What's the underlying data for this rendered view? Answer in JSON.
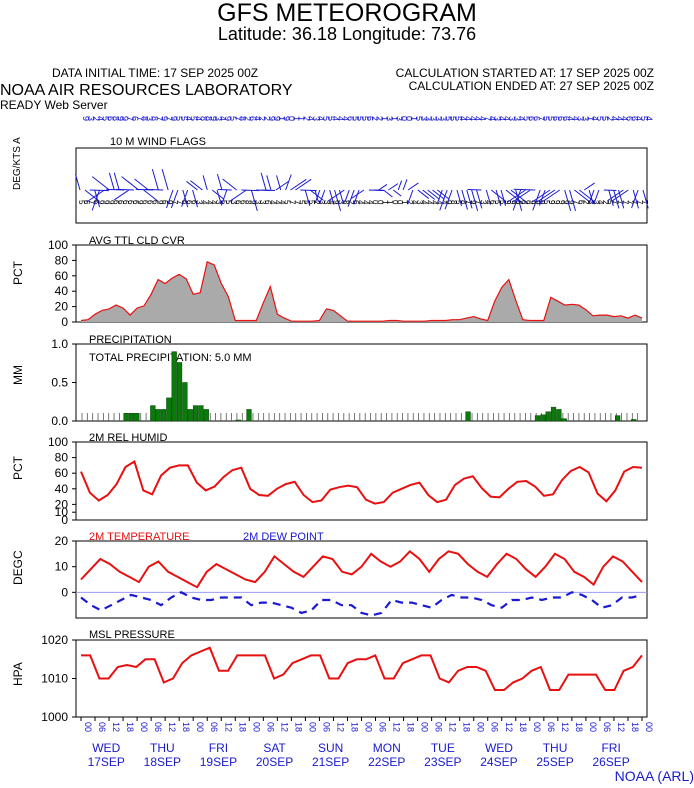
{
  "header": {
    "title": "GFS METEOROGRAM",
    "latlon": "Latitude: 36.18 Longitude:  73.76",
    "data_initial_time": "DATA INITIAL TIME: 17 SEP 2025 00Z",
    "calc_started": "CALCULATION STARTED AT: 17 SEP 2025 00Z",
    "calc_ended": "CALCULATION ENDED AT: 27 SEP 2025 00Z",
    "lab": "NOAA AIR RESOURCES LABORATORY",
    "server": "READY Web Server"
  },
  "footer": {
    "credit": "NOAA (ARL)"
  },
  "colors": {
    "red": "#e81010",
    "blue": "#1a1ad0",
    "green": "#0a7a0a",
    "gray": "#aaaaaa",
    "zero_line": "#9c9cf0"
  },
  "chart_data": [
    {
      "type": "line",
      "title": "10 M  WIND FLAGS",
      "ylabel": "DEG/KTS  A",
      "series": [
        {
          "name": "direction",
          "values": [
            9,
            3,
            2,
            4,
            5,
            6,
            8,
            9,
            9,
            7,
            6,
            7,
            8,
            3,
            8,
            7,
            9,
            7,
            9,
            5,
            5,
            4,
            5,
            4,
            8,
            8,
            9,
            3,
            4,
            9,
            5,
            7,
            8,
            2,
            6,
            4,
            2,
            2,
            9,
            9,
            1,
            9,
            0,
            1,
            1,
            2,
            4,
            3,
            4,
            5,
            5,
            4,
            4,
            4,
            6,
            5,
            5,
            5,
            6,
            2,
            2,
            1,
            3,
            1,
            3,
            0,
            0,
            1,
            5,
            3,
            3,
            3,
            3,
            3,
            5,
            5,
            5,
            4,
            4,
            4,
            4,
            4,
            7,
            4,
            3,
            4,
            4,
            3,
            3,
            4,
            5,
            6,
            6,
            7,
            5,
            5,
            6,
            6,
            6,
            4,
            4,
            3,
            3,
            1,
            4,
            5,
            5,
            2,
            4,
            4,
            4,
            6,
            6,
            4,
            5,
            4
          ]
        },
        {
          "name": "speed",
          "values": [
            5,
            6,
            7,
            6,
            9,
            9,
            9,
            6,
            6,
            6,
            6,
            6,
            9,
            6,
            6,
            6,
            9,
            6,
            9,
            7,
            7,
            6,
            6,
            6,
            3,
            4,
            4,
            4,
            3,
            5,
            5,
            3,
            6,
            6,
            8,
            9,
            3,
            3,
            6,
            4,
            4,
            4,
            5,
            7,
            7,
            5,
            5,
            5,
            2,
            3,
            3,
            4,
            9,
            3,
            8,
            2,
            6,
            4,
            4,
            4,
            0,
            0,
            1,
            1,
            0,
            0,
            1,
            2,
            4,
            3,
            4,
            4,
            4,
            4,
            4,
            9,
            8,
            5,
            8,
            7,
            9,
            7,
            3,
            4,
            6,
            5,
            5,
            9,
            9,
            9,
            9,
            9,
            9,
            9,
            9,
            5,
            9,
            9,
            9,
            9,
            9,
            7,
            6,
            2,
            3,
            3,
            4,
            2,
            5,
            7,
            7,
            7,
            7,
            7,
            7,
            7
          ]
        }
      ]
    },
    {
      "type": "area",
      "title": "AVG TTL CLD CVR",
      "ylabel": "PCT",
      "ylim": [
        0,
        100
      ],
      "yticks": [
        "100",
        "80",
        "60",
        "40",
        "20",
        "0"
      ],
      "series": [
        {
          "values": [
            2,
            3,
            10,
            15,
            17,
            22,
            18,
            9,
            18,
            21,
            36,
            55,
            50,
            57,
            62,
            56,
            36,
            38,
            78,
            74,
            50,
            33,
            2,
            2,
            2,
            2,
            25,
            46,
            10,
            5,
            1,
            1,
            1,
            1,
            2,
            17,
            15,
            8,
            1,
            1,
            1,
            1,
            1,
            1,
            2,
            2,
            1,
            1,
            1,
            1,
            2,
            2,
            2,
            3,
            3,
            5,
            7,
            4,
            2,
            27,
            45,
            55,
            28,
            3,
            2,
            2,
            2,
            32,
            27,
            22,
            23,
            22,
            16,
            8,
            9,
            9,
            7,
            8,
            5,
            9,
            5
          ]
        }
      ]
    },
    {
      "type": "bar",
      "title": "PRECIPITATION",
      "ylabel": "MM",
      "ylim": [
        0,
        1.0
      ],
      "yticks": [
        "1.0",
        "0.5",
        "0.0"
      ],
      "annotation": "TOTAL PRECIPITATION:   5.0 MM",
      "values": [
        0,
        0,
        0,
        0,
        0,
        0,
        0,
        0,
        0.1,
        0.1,
        0.1,
        0,
        0,
        0.2,
        0.15,
        0.15,
        0.3,
        0.9,
        0.76,
        0.5,
        0.15,
        0.2,
        0.2,
        0.15,
        0,
        0,
        0,
        0,
        0,
        0.01,
        0,
        0.15,
        0,
        0,
        0,
        0,
        0,
        0,
        0,
        0,
        0,
        0,
        0,
        0,
        0,
        0,
        0,
        0,
        0,
        0,
        0,
        0,
        0,
        0,
        0,
        0,
        0,
        0,
        0,
        0,
        0,
        0,
        0,
        0,
        0,
        0,
        0,
        0,
        0,
        0,
        0,
        0,
        0.12,
        0,
        0,
        0,
        0,
        0,
        0,
        0,
        0,
        0,
        0,
        0,
        0,
        0.07,
        0.08,
        0.12,
        0.18,
        0.15,
        0.03,
        0,
        0,
        0,
        0,
        0,
        0,
        0,
        0,
        0,
        0.07,
        0,
        0,
        0.02,
        0
      ]
    },
    {
      "type": "line",
      "title": "2M REL HUMID",
      "ylabel": "PCT",
      "ylim": [
        0,
        100
      ],
      "yticks": [
        "100",
        "80",
        "60",
        "40",
        "20",
        "10",
        "0"
      ],
      "series": [
        {
          "values": [
            62,
            35,
            25,
            32,
            46,
            68,
            75,
            38,
            33,
            57,
            67,
            70,
            70,
            48,
            38,
            43,
            55,
            64,
            67,
            40,
            32,
            31,
            40,
            46,
            49,
            32,
            23,
            25,
            39,
            42,
            44,
            42,
            26,
            21,
            23,
            35,
            40,
            45,
            48,
            32,
            23,
            26,
            45,
            53,
            56,
            41,
            30,
            29,
            40,
            49,
            50,
            43,
            31,
            33,
            51,
            63,
            68,
            61,
            34,
            24,
            38,
            62,
            68,
            67
          ]
        }
      ]
    },
    {
      "type": "line",
      "title": "2M TEMPERATURE",
      "ylabel": "DEGC",
      "ylim": [
        -10,
        20
      ],
      "yticks": [
        "20",
        "10",
        "0"
      ],
      "series": [
        {
          "name": "2M TEMPERATURE",
          "values": [
            5,
            9,
            13,
            11,
            8,
            6,
            4,
            10,
            12,
            8,
            6,
            4,
            2,
            8,
            11,
            9,
            7,
            5,
            4,
            8,
            14,
            11,
            8,
            6,
            10,
            14,
            13,
            8,
            7,
            10,
            15,
            12,
            10,
            12,
            16,
            13,
            8,
            13,
            16,
            15,
            11,
            8,
            6,
            11,
            15,
            13,
            9,
            6,
            10,
            15,
            13,
            8,
            6,
            3,
            10,
            14,
            12,
            8,
            4
          ]
        },
        {
          "name": "DEW POINT",
          "values": [
            -2,
            -5,
            -7,
            -5,
            -3,
            -1,
            -2,
            -3,
            -5,
            -2,
            0,
            -2,
            -3,
            -3,
            -2,
            -2,
            -2,
            -5,
            -4,
            -4,
            -5,
            -6,
            -8,
            -7,
            -3,
            -3,
            -5,
            -5,
            -8,
            -9,
            -8,
            -3,
            -4,
            -4,
            -5,
            -6,
            -3,
            -1,
            -2,
            -2,
            -3,
            -5,
            -6,
            -3,
            -3,
            -2,
            -3,
            -2,
            -2,
            0,
            -1,
            -3,
            -6,
            -5,
            -2,
            -2,
            -1
          ]
        }
      ]
    },
    {
      "type": "line",
      "title": "MSL PRESSURE",
      "ylabel": "HPA",
      "ylim": [
        1000,
        1020
      ],
      "yticks": [
        "1020",
        "1010",
        "1000"
      ],
      "series": [
        {
          "values": [
            1016,
            1016,
            1010,
            1010,
            1013,
            1013.5,
            1013,
            1015,
            1015,
            1009,
            1010,
            1014,
            1016,
            1017,
            1018,
            1012,
            1012,
            1016,
            1016,
            1016,
            1016,
            1010,
            1011,
            1014,
            1015,
            1016,
            1016,
            1010,
            1010,
            1014,
            1015,
            1015,
            1016,
            1010,
            1010,
            1014,
            1015,
            1016,
            1016,
            1010,
            1009,
            1012,
            1013,
            1013,
            1012,
            1007,
            1007,
            1009,
            1010,
            1012,
            1013,
            1007,
            1007,
            1011,
            1011,
            1011,
            1011,
            1007,
            1007,
            1012,
            1013,
            1016
          ]
        }
      ]
    }
  ],
  "time_axis": {
    "hour_ticks": [
      "00",
      "06",
      "12",
      "18",
      "00",
      "06",
      "12",
      "18",
      "00",
      "06",
      "12",
      "18",
      "00",
      "06",
      "12",
      "18",
      "00",
      "06",
      "12",
      "18",
      "00",
      "06",
      "12",
      "18",
      "00",
      "06",
      "12",
      "18",
      "00",
      "06",
      "12",
      "18",
      "00",
      "06",
      "12",
      "18",
      "00",
      "06",
      "12",
      "18",
      "00"
    ],
    "day_labels": [
      {
        "day": "WED",
        "date": "17SEP"
      },
      {
        "day": "THU",
        "date": "18SEP"
      },
      {
        "day": "FRI",
        "date": "19SEP"
      },
      {
        "day": "SAT",
        "date": "20SEP"
      },
      {
        "day": "SUN",
        "date": "21SEP"
      },
      {
        "day": "MON",
        "date": "22SEP"
      },
      {
        "day": "TUE",
        "date": "23SEP"
      },
      {
        "day": "WED",
        "date": "24SEP"
      },
      {
        "day": "THU",
        "date": "25SEP"
      },
      {
        "day": "FRI",
        "date": "26SEP"
      }
    ]
  }
}
